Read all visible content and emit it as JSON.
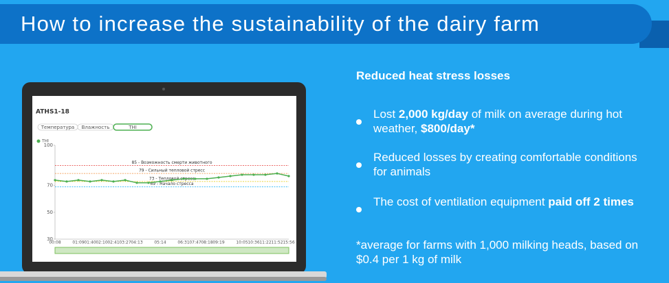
{
  "header": {
    "title": "How to increase the sustainability of the dairy farm"
  },
  "content": {
    "heading": "Reduced heat stress losses",
    "bullets": [
      {
        "segments": [
          {
            "text": "Lost ",
            "bold": false
          },
          {
            "text": "2,000 kg/day",
            "bold": true
          },
          {
            "text": " of milk on average during hot weather, ",
            "bold": false
          },
          {
            "text": "$800/day*",
            "bold": true
          }
        ]
      },
      {
        "segments": [
          {
            "text": "Reduced losses by creating comfortable conditions for animals",
            "bold": false
          }
        ]
      },
      {
        "segments": [
          {
            "text": "The cost of ventilation equipment ",
            "bold": false
          },
          {
            "text": "paid off 2 times",
            "bold": true
          }
        ]
      }
    ],
    "footnote": "*average for farms with 1,000 milking heads, based on $0.4 per 1 kg of milk"
  },
  "chart_data": {
    "type": "line",
    "title": "ATHS1-18",
    "tabs": [
      "Температура",
      "Влажность",
      "THI"
    ],
    "categories": [
      "00:08",
      null,
      "01:09",
      "01:40",
      "02:10",
      "02:41",
      "03:27",
      "04:13",
      null,
      "05:14",
      null,
      "06:31",
      "07:47",
      "08:18",
      "09:19",
      null,
      "10:05",
      "10:36",
      "11:22",
      "11:52",
      "15:56"
    ],
    "series": [
      {
        "name": "THI",
        "color": "#4caf50",
        "values": [
          74,
          73,
          74,
          73,
          74,
          73,
          74,
          72,
          72,
          73,
          74,
          75,
          75,
          75,
          76,
          77,
          78,
          78,
          78,
          79,
          77
        ]
      }
    ],
    "thresholds": [
      {
        "value": 85,
        "label": "85 - Возможность смерти животного",
        "color": "#e53935"
      },
      {
        "value": 79,
        "label": "79 - Сильный тепловой стресс",
        "color": "#f08c3a"
      },
      {
        "value": 73,
        "label": "73 - Тепловой стресс",
        "color": "#e6c700"
      },
      {
        "value": 69,
        "label": "69 - Начало стресса",
        "color": "#29b6f6"
      }
    ],
    "ylim": [
      30,
      100
    ],
    "yticks": [
      30,
      50,
      70,
      100
    ]
  }
}
